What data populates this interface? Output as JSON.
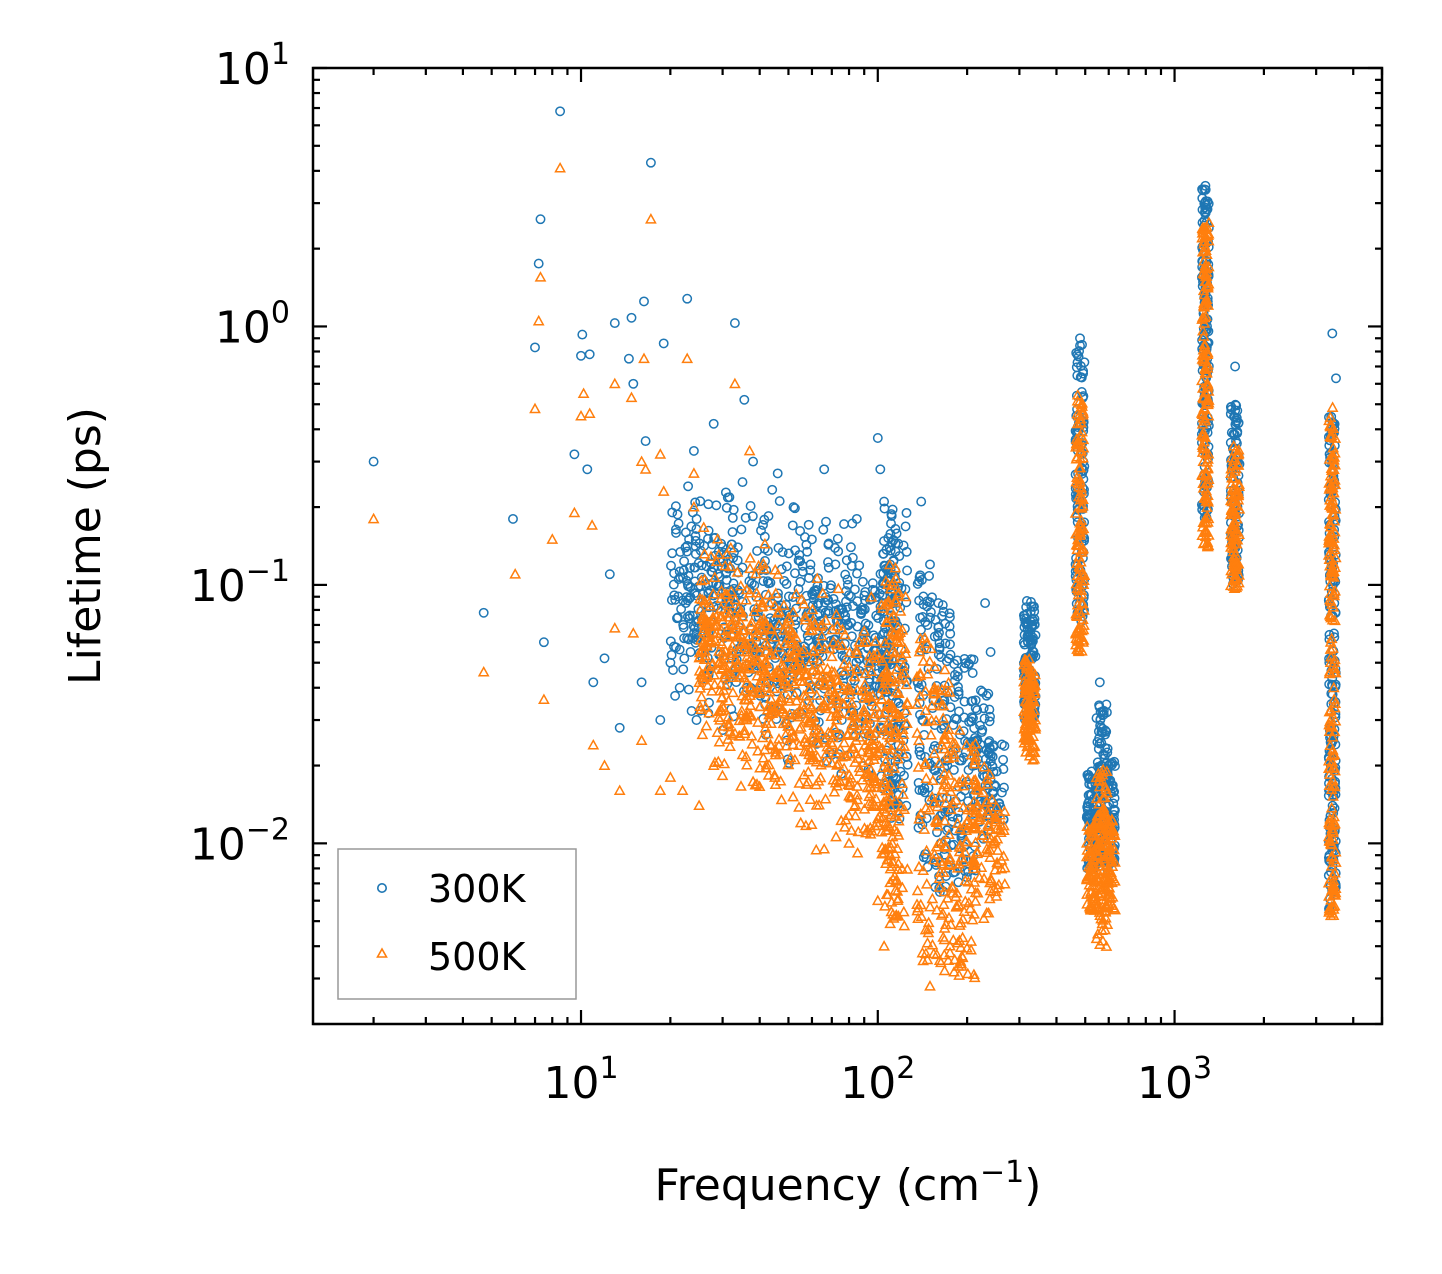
{
  "chart_data": {
    "type": "scatter",
    "title": "",
    "xscale": "log",
    "yscale": "log",
    "xlabel": "Frequency (cm",
    "xlabel_sup": "−1",
    "xlabel_suffix": ")",
    "ylabel": "Lifetime (ps)",
    "xlim": [
      1.25,
      5000
    ],
    "ylim": [
      0.002,
      10
    ],
    "x_ticks": [
      {
        "value": 10,
        "base": "10",
        "exp": "1"
      },
      {
        "value": 100,
        "base": "10",
        "exp": "2"
      },
      {
        "value": 1000,
        "base": "10",
        "exp": "3"
      }
    ],
    "y_ticks": [
      {
        "value": 10,
        "base": "10",
        "exp": "1"
      },
      {
        "value": 1,
        "base": "10",
        "exp": "0"
      },
      {
        "value": 0.1,
        "base": "10",
        "exp": "−1"
      },
      {
        "value": 0.01,
        "base": "10",
        "exp": "−2"
      }
    ],
    "legend_position": "lower-left",
    "series": [
      {
        "name": "300K",
        "marker": "circle",
        "color": "#1f77b4",
        "points": [
          [
            2.0,
            0.3
          ],
          [
            4.7,
            0.078
          ],
          [
            5.9,
            0.18
          ],
          [
            7.0,
            0.83
          ],
          [
            7.2,
            1.75
          ],
          [
            7.3,
            2.6
          ],
          [
            7.5,
            0.06
          ],
          [
            8.5,
            6.8
          ],
          [
            10.0,
            0.77
          ],
          [
            10.1,
            0.93
          ],
          [
            10.7,
            0.78
          ],
          [
            10.5,
            0.28
          ],
          [
            9.5,
            0.32
          ],
          [
            13.0,
            1.03
          ],
          [
            14.8,
            1.08
          ],
          [
            16.5,
            0.36
          ],
          [
            17.2,
            4.3
          ],
          [
            16.3,
            1.25
          ],
          [
            19.0,
            0.86
          ],
          [
            22.8,
            1.28
          ],
          [
            24.0,
            0.33
          ],
          [
            33.0,
            1.03
          ],
          [
            35.5,
            0.52
          ],
          [
            11.0,
            0.042
          ],
          [
            12.0,
            0.052
          ],
          [
            13.5,
            0.028
          ],
          [
            12.5,
            0.11
          ],
          [
            14.5,
            0.75
          ],
          [
            15.0,
            0.6
          ],
          [
            16.0,
            0.042
          ],
          [
            18.5,
            0.03
          ],
          [
            20.0,
            0.05
          ],
          [
            21.5,
            0.04
          ],
          [
            24.5,
            0.03
          ],
          [
            28.0,
            0.42
          ],
          [
            27.0,
            0.035
          ],
          [
            30.0,
            0.14
          ],
          [
            35.0,
            0.25
          ],
          [
            38.0,
            0.3
          ],
          [
            40.0,
            0.055
          ],
          [
            46.0,
            0.27
          ],
          [
            52.0,
            0.2
          ],
          [
            60.0,
            0.15
          ],
          [
            66.0,
            0.28
          ],
          [
            72.0,
            0.12
          ],
          [
            85.0,
            0.18
          ],
          [
            88.0,
            0.08
          ],
          [
            100.0,
            0.37
          ],
          [
            102.0,
            0.28
          ],
          [
            105.0,
            0.21
          ],
          [
            110.0,
            0.12
          ],
          [
            125.0,
            0.19
          ],
          [
            140.0,
            0.21
          ],
          [
            150.0,
            0.12
          ],
          [
            160.0,
            0.085
          ],
          [
            175.0,
            0.075
          ],
          [
            230.0,
            0.085
          ],
          [
            240.0,
            0.055
          ],
          [
            480.0,
            0.9
          ],
          [
            1270.0,
            3.5
          ],
          [
            1600.0,
            0.7
          ],
          [
            3400.0,
            0.94
          ],
          [
            3500.0,
            0.63
          ],
          [
            560.0,
            0.042
          ],
          [
            600.0,
            0.02
          ]
        ],
        "bands": [
          {
            "x": 110.0,
            "xw": 0.03,
            "ymin": 0.014,
            "ymax": 0.2,
            "n": 90
          },
          {
            "x": 118.0,
            "xw": 0.03,
            "ymin": 0.012,
            "ymax": 0.17,
            "n": 70
          },
          {
            "x": 145.0,
            "xw": 0.03,
            "ymin": 0.008,
            "ymax": 0.12,
            "n": 60
          },
          {
            "x": 165.0,
            "xw": 0.03,
            "ymin": 0.006,
            "ymax": 0.085,
            "n": 80
          },
          {
            "x": 195.0,
            "xw": 0.04,
            "ymin": 0.007,
            "ymax": 0.052,
            "n": 90
          },
          {
            "x": 225.0,
            "xw": 0.03,
            "ymin": 0.01,
            "ymax": 0.04,
            "n": 50
          },
          {
            "x": 250.0,
            "xw": 0.03,
            "ymin": 0.012,
            "ymax": 0.025,
            "n": 40
          },
          {
            "x": 325.0,
            "xw": 0.02,
            "ymin": 0.03,
            "ymax": 0.087,
            "n": 120
          },
          {
            "x": 480.0,
            "xw": 0.015,
            "ymin": 0.07,
            "ymax": 0.85,
            "n": 120
          },
          {
            "x": 530.0,
            "xw": 0.02,
            "ymin": 0.008,
            "ymax": 0.02,
            "n": 80
          },
          {
            "x": 570.0,
            "xw": 0.02,
            "ymin": 0.008,
            "ymax": 0.035,
            "n": 90
          },
          {
            "x": 610.0,
            "xw": 0.015,
            "ymin": 0.008,
            "ymax": 0.022,
            "n": 60
          },
          {
            "x": 1270.0,
            "xw": 0.012,
            "ymin": 0.18,
            "ymax": 3.4,
            "n": 160
          },
          {
            "x": 1600.0,
            "xw": 0.015,
            "ymin": 0.1,
            "ymax": 0.5,
            "n": 100
          },
          {
            "x": 3400.0,
            "xw": 0.012,
            "ymin": 0.0055,
            "ymax": 0.45,
            "n": 200
          }
        ],
        "cloud": {
          "xmin": 20,
          "xmax": 110,
          "n": 700,
          "y_at_xmin": [
            0.025,
            0.35
          ],
          "y_at_xmax": [
            0.012,
            0.22
          ]
        }
      },
      {
        "name": "500K",
        "marker": "triangle",
        "color": "#ff7f0e",
        "points": [
          [
            2.0,
            0.18
          ],
          [
            4.7,
            0.046
          ],
          [
            6.0,
            0.11
          ],
          [
            7.0,
            0.48
          ],
          [
            7.2,
            1.05
          ],
          [
            7.3,
            1.55
          ],
          [
            7.5,
            0.036
          ],
          [
            8.5,
            4.1
          ],
          [
            8.0,
            0.15
          ],
          [
            9.5,
            0.19
          ],
          [
            10.0,
            0.45
          ],
          [
            10.2,
            0.55
          ],
          [
            10.7,
            0.46
          ],
          [
            10.9,
            0.17
          ],
          [
            13.0,
            0.6
          ],
          [
            14.8,
            0.53
          ],
          [
            16.5,
            0.28
          ],
          [
            17.2,
            2.6
          ],
          [
            16.3,
            0.75
          ],
          [
            18.5,
            0.32
          ],
          [
            22.8,
            0.75
          ],
          [
            24.0,
            0.2
          ],
          [
            33.0,
            0.6
          ],
          [
            37.0,
            0.33
          ],
          [
            11.0,
            0.024
          ],
          [
            12.0,
            0.02
          ],
          [
            13.5,
            0.016
          ],
          [
            13.0,
            0.068
          ],
          [
            15.0,
            0.065
          ],
          [
            16.0,
            0.025
          ],
          [
            18.5,
            0.016
          ],
          [
            20.0,
            0.018
          ],
          [
            22.0,
            0.016
          ],
          [
            25.0,
            0.014
          ],
          [
            28.0,
            0.02
          ],
          [
            35.0,
            0.022
          ],
          [
            45.0,
            0.018
          ],
          [
            55.0,
            0.012
          ],
          [
            66.0,
            0.0095
          ],
          [
            80.0,
            0.01
          ],
          [
            100.0,
            0.006
          ],
          [
            105.0,
            0.004
          ],
          [
            110.0,
            0.009
          ],
          [
            150.0,
            0.0028
          ],
          [
            190.0,
            0.0035
          ],
          [
            250.0,
            0.0065
          ],
          [
            260.0,
            0.011
          ],
          [
            16.0,
            0.3
          ],
          [
            19.0,
            0.23
          ],
          [
            24.0,
            0.27
          ]
        ],
        "bands": [
          {
            "x": 110.0,
            "xw": 0.03,
            "ymin": 0.005,
            "ymax": 0.12,
            "n": 90
          },
          {
            "x": 118.0,
            "xw": 0.03,
            "ymin": 0.0045,
            "ymax": 0.1,
            "n": 70
          },
          {
            "x": 145.0,
            "xw": 0.03,
            "ymin": 0.0035,
            "ymax": 0.065,
            "n": 60
          },
          {
            "x": 165.0,
            "xw": 0.03,
            "ymin": 0.0028,
            "ymax": 0.05,
            "n": 80
          },
          {
            "x": 195.0,
            "xw": 0.04,
            "ymin": 0.003,
            "ymax": 0.03,
            "n": 90
          },
          {
            "x": 225.0,
            "xw": 0.03,
            "ymin": 0.0045,
            "ymax": 0.022,
            "n": 50
          },
          {
            "x": 250.0,
            "xw": 0.03,
            "ymin": 0.006,
            "ymax": 0.015,
            "n": 40
          },
          {
            "x": 325.0,
            "xw": 0.02,
            "ymin": 0.021,
            "ymax": 0.052,
            "n": 120
          },
          {
            "x": 480.0,
            "xw": 0.015,
            "ymin": 0.055,
            "ymax": 0.55,
            "n": 120
          },
          {
            "x": 530.0,
            "xw": 0.02,
            "ymin": 0.0055,
            "ymax": 0.012,
            "n": 80
          },
          {
            "x": 570.0,
            "xw": 0.02,
            "ymin": 0.0038,
            "ymax": 0.02,
            "n": 90
          },
          {
            "x": 610.0,
            "xw": 0.015,
            "ymin": 0.0055,
            "ymax": 0.013,
            "n": 60
          },
          {
            "x": 1270.0,
            "xw": 0.012,
            "ymin": 0.14,
            "ymax": 2.6,
            "n": 160
          },
          {
            "x": 1600.0,
            "xw": 0.015,
            "ymin": 0.09,
            "ymax": 0.35,
            "n": 100
          },
          {
            "x": 3400.0,
            "xw": 0.012,
            "ymin": 0.005,
            "ymax": 0.5,
            "n": 200
          }
        ],
        "cloud": {
          "xmin": 25,
          "xmax": 110,
          "n": 800,
          "y_at_xmin": [
            0.016,
            0.22
          ],
          "y_at_xmax": [
            0.005,
            0.11
          ]
        }
      }
    ]
  }
}
